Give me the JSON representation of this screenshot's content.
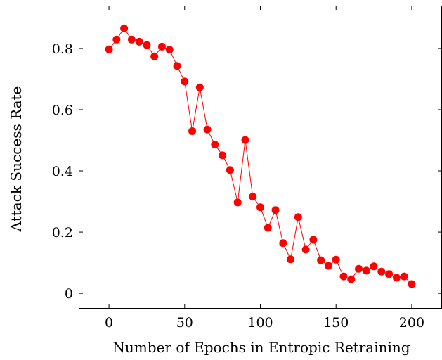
{
  "chart_data": {
    "type": "line",
    "title": "",
    "xlabel": "Number of Epochs in Entropic Retraining",
    "ylabel": "Attack Success Rate",
    "xlim": [
      -20,
      220
    ],
    "ylim": [
      -0.048,
      0.94
    ],
    "xticks": [
      0,
      50,
      100,
      150,
      200
    ],
    "yticks": [
      0,
      0.2,
      0.4,
      0.6,
      0.8
    ],
    "xtick_labels": [
      "0",
      "50",
      "100",
      "150",
      "200"
    ],
    "ytick_labels": [
      "0",
      "0.2",
      "0.4",
      "0.6",
      "0.8"
    ],
    "grid": false,
    "series": [
      {
        "color": "#ff0000",
        "marker": "circle",
        "x": [
          0,
          5,
          10,
          15,
          20,
          25,
          30,
          35,
          40,
          45,
          50,
          55,
          60,
          65,
          70,
          75,
          80,
          85,
          90,
          95,
          100,
          105,
          110,
          115,
          120,
          125,
          130,
          135,
          140,
          145,
          150,
          155,
          160,
          165,
          170,
          175,
          180,
          185,
          190,
          195,
          200
        ],
        "y": [
          0.797,
          0.829,
          0.866,
          0.829,
          0.822,
          0.811,
          0.774,
          0.806,
          0.796,
          0.743,
          0.692,
          0.53,
          0.673,
          0.535,
          0.486,
          0.451,
          0.403,
          0.297,
          0.501,
          0.316,
          0.281,
          0.214,
          0.272,
          0.164,
          0.111,
          0.249,
          0.143,
          0.175,
          0.108,
          0.09,
          0.11,
          0.055,
          0.046,
          0.08,
          0.074,
          0.088,
          0.071,
          0.063,
          0.051,
          0.055,
          0.03
        ]
      }
    ]
  }
}
